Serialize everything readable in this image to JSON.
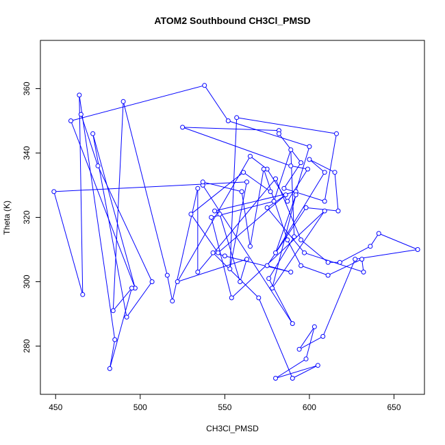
{
  "chart_data": {
    "type": "line",
    "title": "ATOM2 Southbound CH3Cl_PMSD",
    "xlabel": "CH3Cl_PMSD",
    "ylabel": "Theta (K)",
    "xlim": [
      441,
      668
    ],
    "ylim": [
      265,
      375
    ],
    "xticks": [
      450,
      500,
      550,
      600,
      650
    ],
    "yticks": [
      280,
      300,
      320,
      340,
      360
    ],
    "grid": false,
    "legend": "none",
    "colors": {
      "series": "#0000ff",
      "axis": "#000000"
    },
    "markers": "open-circle",
    "series": [
      {
        "x": [
          465,
          475,
          507,
          492,
          472,
          497,
          459,
          538,
          552,
          600,
          592,
          544,
          547,
          559,
          563,
          522,
          565,
          575,
          587,
          599,
          589,
          525,
          582,
          582,
          595,
          585,
          609,
          616,
          557,
          553,
          563,
          449,
          466,
          464,
          485,
          482,
          495,
          484,
          490,
          516,
          519,
          534,
          534,
          580,
          595,
          611,
          618,
          636,
          641,
          664,
          627,
          608,
          594,
          603,
          598,
          580,
          605,
          590,
          570,
          543,
          550,
          589,
          575,
          598,
          617,
          615,
          600,
          609,
          580,
          592,
          578,
          609,
          554,
          542,
          579,
          589,
          591,
          576,
          590,
          537,
          537,
          560,
          565,
          573,
          587,
          595,
          611,
          631,
          632,
          597,
          575,
          586,
          546,
          530,
          561,
          577
        ],
        "y": [
          352,
          336,
          300,
          289,
          346,
          298,
          350,
          361,
          350,
          342,
          328,
          322,
          321,
          300,
          307,
          300,
          339,
          335,
          325,
          335,
          336,
          348,
          347,
          346,
          337,
          329,
          325,
          346,
          351,
          304,
          331,
          328,
          296,
          358,
          282,
          273,
          298,
          291,
          356,
          302,
          294,
          329,
          303,
          332,
          313,
          306,
          306,
          311,
          315,
          310,
          307,
          283,
          279,
          286,
          276,
          270,
          274,
          270,
          295,
          309,
          308,
          303,
          305,
          323,
          322,
          334,
          338,
          334,
          309,
          327,
          298,
          322,
          295,
          320,
          325,
          341,
          314,
          301,
          287,
          330,
          331,
          328,
          311,
          335,
          313,
          305,
          302,
          307,
          303,
          309,
          323,
          327,
          309,
          321,
          334,
          328
        ]
      }
    ]
  }
}
